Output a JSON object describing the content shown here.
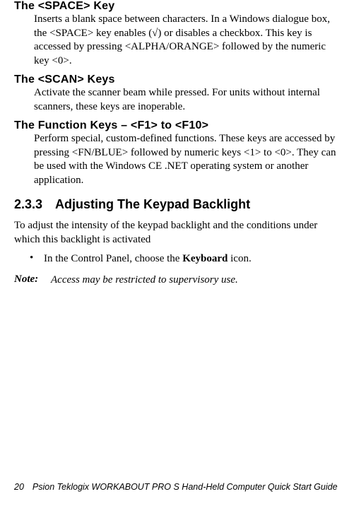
{
  "entries": [
    {
      "term": "The <SPACE> Key",
      "desc": "Inserts a blank space between characters. In a Windows dialogue box, the <SPACE> key enables (√) or disables a checkbox. This key is accessed by pressing <ALPHA/ORANGE> followed by the numeric key <0>."
    },
    {
      "term": "The <SCAN> Keys",
      "desc": "Activate the scanner beam while pressed. For units without internal scanners, these keys are inoperable."
    },
    {
      "term": "The Function Keys – <F1> to <F10>",
      "desc": "Perform special, custom-defined functions. These keys are accessed by pressing <FN/BLUE> followed by numeric keys <1> to <0>. They can be used with the Windows CE .NET operating system or another application."
    }
  ],
  "heading": "2.3.3 Adjusting The Keypad Backlight",
  "body": "To adjust the intensity of the keypad backlight and the conditions under which this backlight is activated",
  "bullet": {
    "marker": "•",
    "pre": "In the Control Panel, choose the ",
    "bold": "Keyboard",
    "post": " icon."
  },
  "note": {
    "label": "Note:",
    "text": "Access may be restricted to supervisory use."
  },
  "footer": {
    "page": "20",
    "title": "Psion Teklogix WORKABOUT PRO  S Hand-Held Computer Quick Start Guide"
  }
}
